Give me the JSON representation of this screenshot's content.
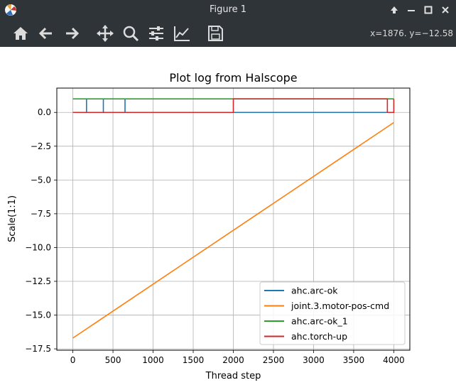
{
  "window": {
    "title": "Figure 1",
    "coords": "x=1876. y=−12.58"
  },
  "toolbar": {
    "tools": [
      "home-icon",
      "back-icon",
      "forward-icon",
      "pan-icon",
      "zoom-icon",
      "configure-subplots-icon",
      "edit-axis-icon",
      "save-icon"
    ]
  },
  "chart_data": {
    "type": "line",
    "title": "Plot log from Halscope",
    "xlabel": "Thread step",
    "ylabel": "Scale(1:1)",
    "xlim": [
      -200,
      4200
    ],
    "ylim": [
      -17.6,
      1.8
    ],
    "xticks": [
      0,
      500,
      1000,
      1500,
      2000,
      2500,
      3000,
      3500,
      4000
    ],
    "yticks": [
      0.0,
      -2.5,
      -5.0,
      -7.5,
      -10.0,
      -12.5,
      -15.0,
      -17.5
    ],
    "grid": true,
    "legend_position": "lower-right",
    "series": [
      {
        "name": "ahc.arc-ok",
        "color": "#1f77b4",
        "x": [
          0,
          170,
          170,
          170,
          380,
          380,
          380,
          650,
          650,
          650,
          4000
        ],
        "y": [
          0,
          0,
          1,
          0,
          0,
          1,
          0,
          0,
          1,
          0,
          0
        ]
      },
      {
        "name": "joint.3.motor-pos-cmd",
        "color": "#ff7f0e",
        "x": [
          0,
          4000
        ],
        "y": [
          -16.7,
          -0.75
        ]
      },
      {
        "name": "ahc.arc-ok_1",
        "color": "#2ca02c",
        "x": [
          0,
          4000
        ],
        "y": [
          1,
          1
        ]
      },
      {
        "name": "ahc.torch-up",
        "color": "#d62728",
        "x": [
          0,
          2000,
          2000,
          3920,
          3920,
          4000,
          4000
        ],
        "y": [
          0,
          0,
          1,
          1,
          0,
          0,
          1
        ]
      }
    ]
  }
}
